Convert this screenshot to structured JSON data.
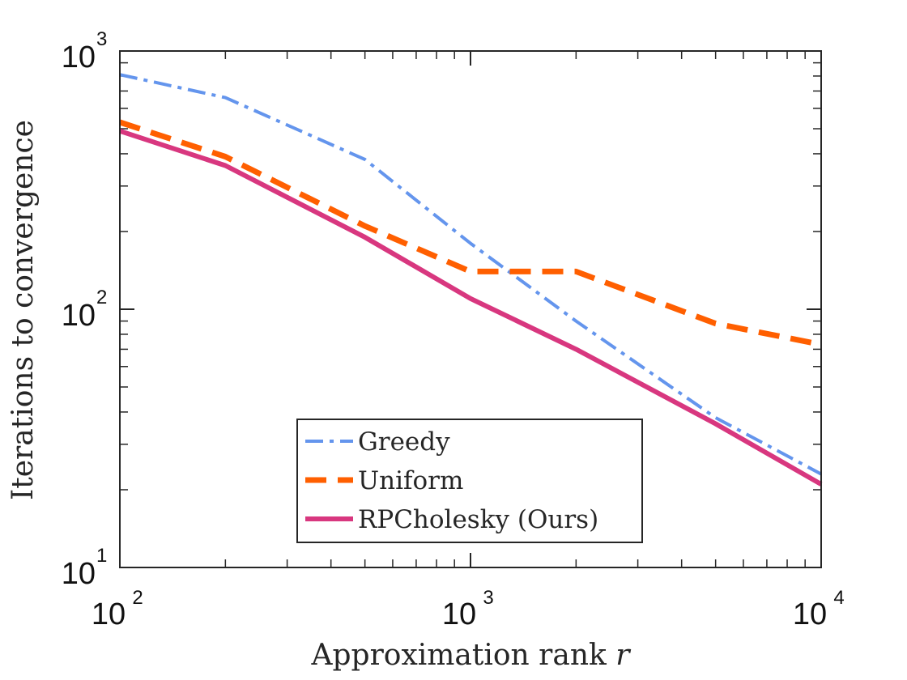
{
  "chart_data": {
    "type": "line",
    "title": "",
    "xscale": "log",
    "yscale": "log",
    "xlim": [
      100,
      10000
    ],
    "ylim": [
      10,
      1000
    ],
    "xlabel": {
      "text": "Approximation rank ",
      "var": "r"
    },
    "ylabel": "Iterations to convergence",
    "xticks": [
      {
        "value": 100,
        "base": "10",
        "exp": "2"
      },
      {
        "value": 1000,
        "base": "10",
        "exp": "3"
      },
      {
        "value": 10000,
        "base": "10",
        "exp": "4"
      }
    ],
    "yticks": [
      {
        "value": 10,
        "base": "10",
        "exp": "1"
      },
      {
        "value": 100,
        "base": "10",
        "exp": "2"
      },
      {
        "value": 1000,
        "base": "10",
        "exp": "3"
      }
    ],
    "grid": false,
    "legend_position": "bottom-center",
    "series": [
      {
        "name": "Greedy",
        "style": "dash-dot",
        "color": "#6495ED",
        "x": [
          100,
          200,
          500,
          1000,
          2000,
          5000,
          10000
        ],
        "y": [
          810,
          660,
          380,
          180,
          90,
          38,
          23
        ]
      },
      {
        "name": "Uniform",
        "style": "dashed",
        "color": "#FF5F00",
        "x": [
          100,
          200,
          500,
          1000,
          2000,
          5000,
          10000
        ],
        "y": [
          530,
          390,
          210,
          140,
          140,
          88,
          73
        ]
      },
      {
        "name": "RPCholesky (Ours)",
        "style": "solid",
        "color": "#D8377F",
        "x": [
          100,
          200,
          500,
          1000,
          2000,
          5000,
          10000
        ],
        "y": [
          490,
          360,
          190,
          110,
          70,
          36,
          21
        ]
      }
    ]
  }
}
